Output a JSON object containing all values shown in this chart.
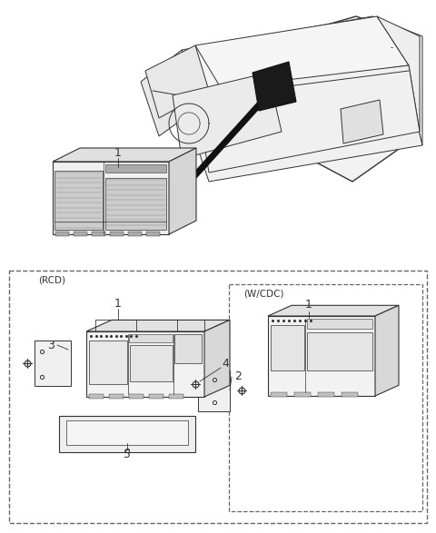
{
  "bg_color": "#ffffff",
  "line_color": "#333333",
  "fig_width": 4.8,
  "fig_height": 5.87,
  "dpi": 100,
  "rcd_label": "(RCD)",
  "wcdc_label": "(W/CDC)",
  "top_label": "1",
  "rcd_labels": [
    "1",
    "2",
    "3",
    "4",
    "5"
  ],
  "wcdc_label_num": "1"
}
